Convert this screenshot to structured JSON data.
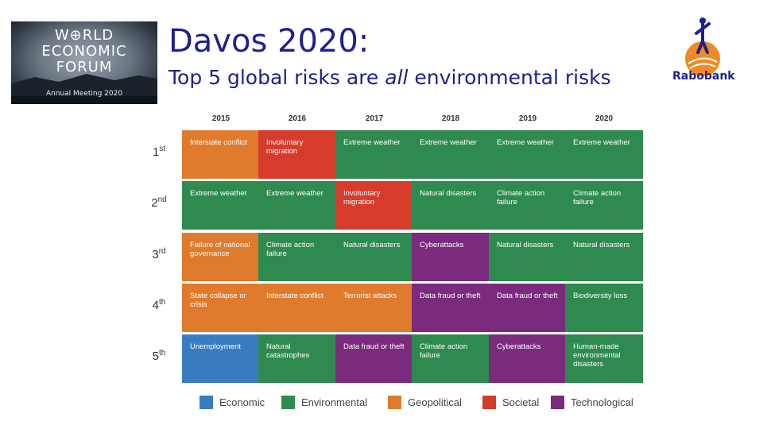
{
  "logo": {
    "lines": [
      "W⊕RLD",
      "ECONOMIC",
      "FORUM"
    ],
    "subtitle": "Annual Meeting 2020"
  },
  "header": {
    "title": "Davos 2020:",
    "subtitle_before": "Top 5 global risks are ",
    "subtitle_emph": "all",
    "subtitle_after": " environmental risks"
  },
  "brand": {
    "name": "Rabobank"
  },
  "colors": {
    "Economic": "#3a7cc2",
    "Environmental": "#2e8a4e",
    "Geopolitical": "#e07b2e",
    "Societal": "#d63b2c",
    "Technological": "#7b2b7d"
  },
  "chart_data": {
    "type": "table",
    "title": "",
    "years": [
      "2015",
      "2016",
      "2017",
      "2018",
      "2019",
      "2020"
    ],
    "ranks": [
      {
        "num": "1",
        "suffix": "st"
      },
      {
        "num": "2",
        "suffix": "nd"
      },
      {
        "num": "3",
        "suffix": "rd"
      },
      {
        "num": "4",
        "suffix": "th"
      },
      {
        "num": "5",
        "suffix": "th"
      }
    ],
    "cells": [
      [
        {
          "label": "Interstate conflict",
          "category": "Geopolitical"
        },
        {
          "label": "Involuntary migration",
          "category": "Societal"
        },
        {
          "label": "Extreme weather",
          "category": "Environmental"
        },
        {
          "label": "Extreme weather",
          "category": "Environmental"
        },
        {
          "label": "Extreme weather",
          "category": "Environmental"
        },
        {
          "label": "Extreme weather",
          "category": "Environmental"
        }
      ],
      [
        {
          "label": "Extreme weather",
          "category": "Environmental"
        },
        {
          "label": "Extreme weather",
          "category": "Environmental"
        },
        {
          "label": "Involuntary migration",
          "category": "Societal"
        },
        {
          "label": "Natural disasters",
          "category": "Environmental"
        },
        {
          "label": "Climate action failure",
          "category": "Environmental"
        },
        {
          "label": "Climate action failure",
          "category": "Environmental"
        }
      ],
      [
        {
          "label": "Failure of national governance",
          "category": "Geopolitical"
        },
        {
          "label": "Climate action failure",
          "category": "Environmental"
        },
        {
          "label": "Natural disasters",
          "category": "Environmental"
        },
        {
          "label": "Cyberattacks",
          "category": "Technological"
        },
        {
          "label": "Natural disasters",
          "category": "Environmental"
        },
        {
          "label": "Natural disasters",
          "category": "Environmental"
        }
      ],
      [
        {
          "label": "State collapse or crisis",
          "category": "Geopolitical"
        },
        {
          "label": "Interstate conflict",
          "category": "Geopolitical"
        },
        {
          "label": "Terrorist attacks",
          "category": "Geopolitical"
        },
        {
          "label": "Data fraud or theft",
          "category": "Technological"
        },
        {
          "label": "Data fraud or theft",
          "category": "Technological"
        },
        {
          "label": "Biodiversity loss",
          "category": "Environmental"
        }
      ],
      [
        {
          "label": "Unemployment",
          "category": "Economic"
        },
        {
          "label": "Natural catastrophes",
          "category": "Environmental"
        },
        {
          "label": "Data fraud or theft",
          "category": "Technological"
        },
        {
          "label": "Climate action failure",
          "category": "Environmental"
        },
        {
          "label": "Cyberattacks",
          "category": "Technological"
        },
        {
          "label": "Human-made environmental disasters",
          "category": "Environmental"
        }
      ]
    ],
    "legend": [
      "Economic",
      "Environmental",
      "Geopolitical",
      "Societal",
      "Technological"
    ]
  }
}
